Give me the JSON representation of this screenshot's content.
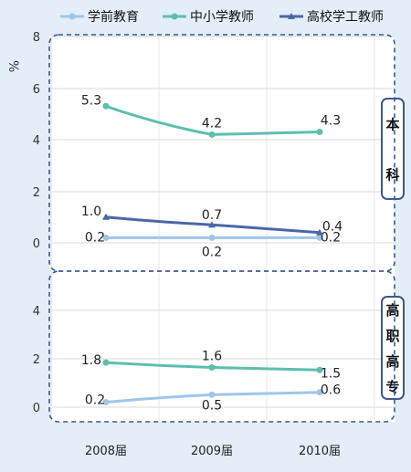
{
  "chart_data": [
    {
      "type": "line",
      "panel_label": "本科",
      "categories": [
        "2008届",
        "2009届",
        "2010届"
      ],
      "ylabel": "%",
      "ylim": [
        0,
        8
      ],
      "yticks": [
        "0",
        "2",
        "4",
        "6",
        "8"
      ],
      "grid": true,
      "legend": "top",
      "series": [
        {
          "name": "学前教育",
          "color": "#9ec6ea",
          "values": [
            0.2,
            0.2,
            0.2
          ],
          "labels": [
            "0.2",
            "0.2",
            "0.2"
          ]
        },
        {
          "name": "中小学教师",
          "color": "#5cbfae",
          "values": [
            5.3,
            4.2,
            4.3
          ],
          "labels": [
            "5.3",
            "4.2",
            "4.3"
          ]
        },
        {
          "name": "高校学工教师",
          "color": "#4a68a8",
          "values": [
            1.0,
            0.7,
            0.4
          ],
          "labels": [
            "1.0",
            "0.7",
            "0.4"
          ]
        }
      ]
    },
    {
      "type": "line",
      "panel_label": "高职高专",
      "categories": [
        "2008届",
        "2009届",
        "2010届"
      ],
      "ylim": [
        0,
        6
      ],
      "yticks": [
        "0",
        "2",
        "4"
      ],
      "grid": true,
      "series": [
        {
          "name": "学前教育",
          "color": "#9ec6ea",
          "values": [
            0.2,
            0.5,
            0.6
          ],
          "labels": [
            "0.2",
            "0.5",
            "0.6"
          ]
        },
        {
          "name": "中小学教师",
          "color": "#5cbfae",
          "values": [
            1.8,
            1.6,
            1.5
          ],
          "labels": [
            "1.8",
            "1.6",
            "1.5"
          ]
        }
      ]
    }
  ]
}
